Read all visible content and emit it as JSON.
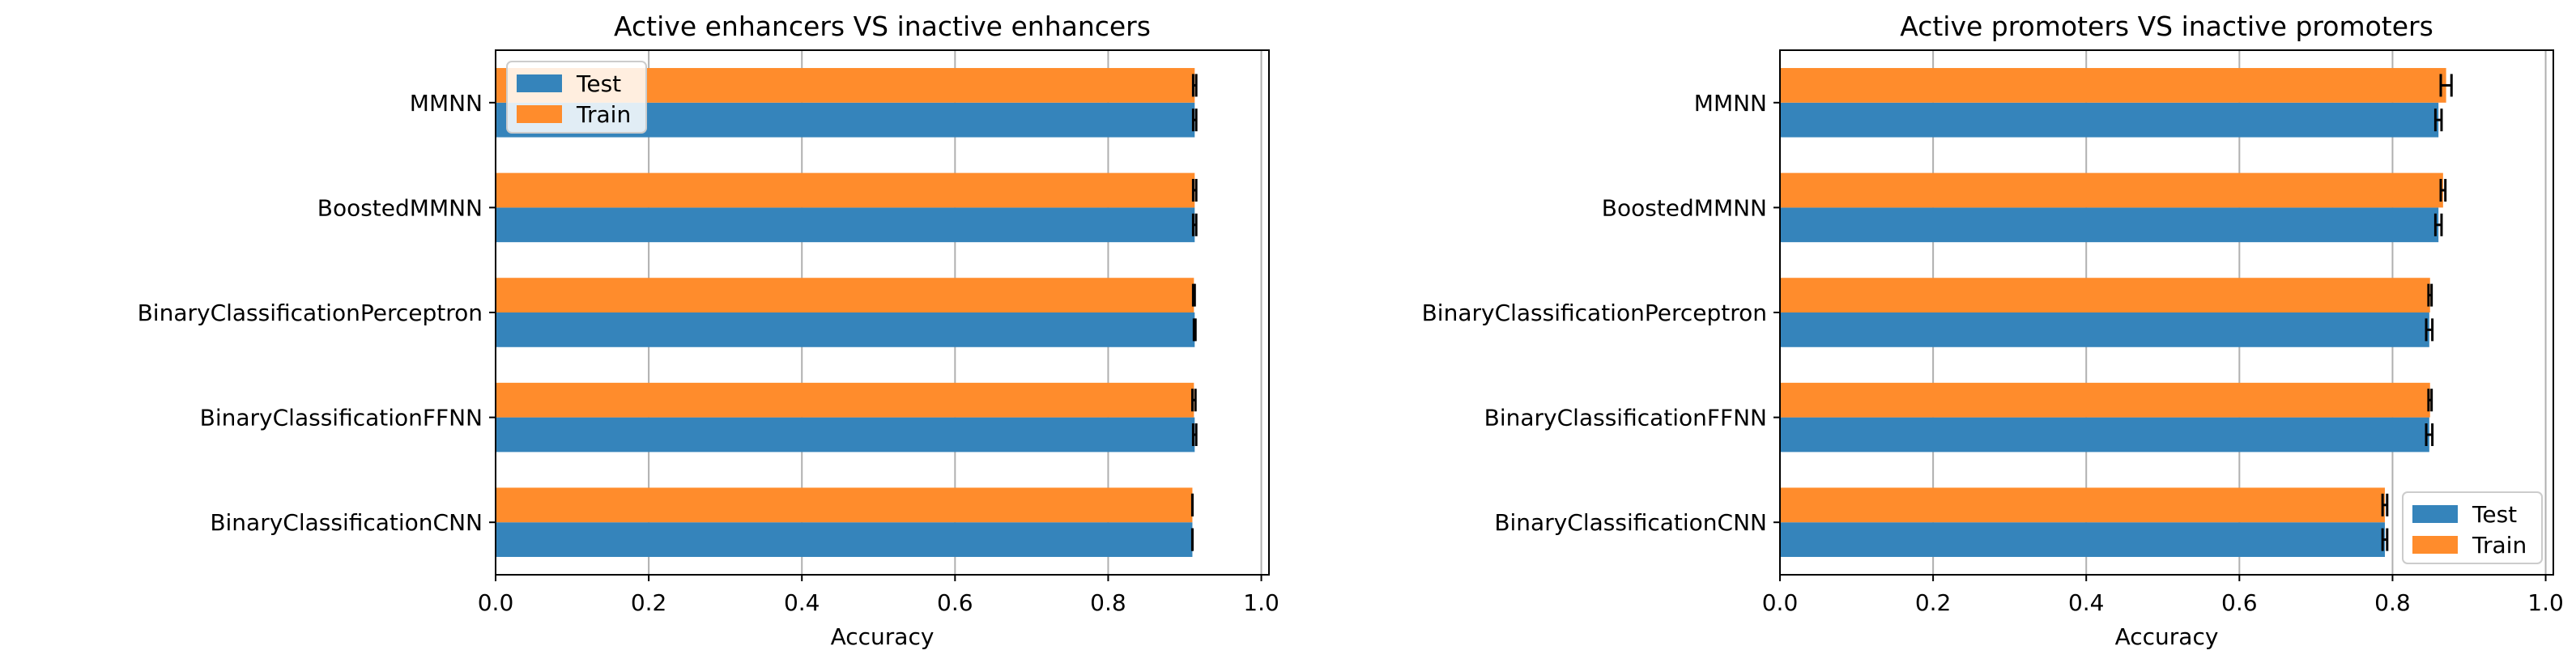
{
  "chart_data": [
    {
      "type": "bar",
      "orientation": "horizontal",
      "title": "Active enhancers VS inactive enhancers",
      "xlabel": "Accuracy",
      "ylabel": "",
      "xlim": [
        0.0,
        1.01
      ],
      "xticks": [
        "0.0",
        "0.2",
        "0.4",
        "0.6",
        "0.8",
        "1.0"
      ],
      "grid": "vertical",
      "legend_position": "upper left",
      "categories": [
        "MMNN",
        "BoostedMMNN",
        "BinaryClassificationPerceptron",
        "BinaryClassificationFFNN",
        "BinaryClassificationCNN"
      ],
      "series": [
        {
          "name": "Test",
          "color": "#3584bb",
          "values": [
            0.913,
            0.913,
            0.913,
            0.913,
            0.91
          ],
          "errors": [
            0.002,
            0.002,
            0.001,
            0.002,
            0.0
          ]
        },
        {
          "name": "Train",
          "color": "#ff8c2c",
          "values": [
            0.913,
            0.913,
            0.912,
            0.912,
            0.91
          ],
          "errors": [
            0.002,
            0.002,
            0.001,
            0.002,
            0.0
          ]
        }
      ]
    },
    {
      "type": "bar",
      "orientation": "horizontal",
      "title": "Active promoters VS inactive promoters",
      "xlabel": "Accuracy",
      "ylabel": "",
      "xlim": [
        0.0,
        1.01
      ],
      "xticks": [
        "0.0",
        "0.2",
        "0.4",
        "0.6",
        "0.8",
        "1.0"
      ],
      "grid": "vertical",
      "legend_position": "lower right",
      "categories": [
        "MMNN",
        "BoostedMMNN",
        "BinaryClassificationPerceptron",
        "BinaryClassificationFFNN",
        "BinaryClassificationCNN"
      ],
      "series": [
        {
          "name": "Test",
          "color": "#3584bb",
          "values": [
            0.86,
            0.86,
            0.848,
            0.848,
            0.79
          ],
          "errors": [
            0.004,
            0.004,
            0.004,
            0.004,
            0.003
          ]
        },
        {
          "name": "Train",
          "color": "#ff8c2c",
          "values": [
            0.87,
            0.866,
            0.849,
            0.849,
            0.79
          ],
          "errors": [
            0.007,
            0.003,
            0.002,
            0.002,
            0.003
          ]
        }
      ]
    }
  ]
}
